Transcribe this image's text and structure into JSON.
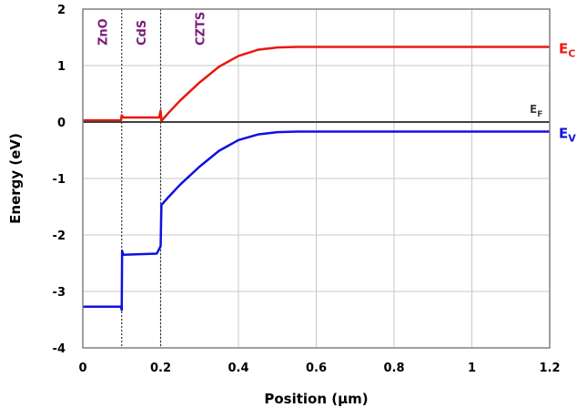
{
  "chart_data": {
    "type": "line",
    "xlabel": "Position (μm)",
    "ylabel": "Energy (eV)",
    "xlim": [
      0,
      1.2
    ],
    "ylim": [
      -4,
      2
    ],
    "x_ticks": [
      "0",
      "0.2",
      "0.4",
      "0.6",
      "0.8",
      "1",
      "1.2"
    ],
    "y_ticks": [
      "2",
      "1",
      "0",
      "-1",
      "-2",
      "-3",
      "-4"
    ],
    "grid": true,
    "regions": [
      {
        "label": "ZnO",
        "x_label_at": 0.05,
        "boundary_x": 0.1
      },
      {
        "label": "CdS",
        "x_label_at": 0.15,
        "boundary_x": 0.2
      },
      {
        "label": "CZTS",
        "x_label_at": 0.3
      }
    ],
    "region_color": "#7b1a7b",
    "series": [
      {
        "name": "E",
        "subscript": "C",
        "color": "#e8190e",
        "points": [
          [
            0,
            0.03
          ],
          [
            0.098,
            0.03
          ],
          [
            0.1,
            0.12
          ],
          [
            0.104,
            0.08
          ],
          [
            0.196,
            0.08
          ],
          [
            0.2,
            0.2
          ],
          [
            0.202,
            0.02
          ],
          [
            0.22,
            0.16
          ],
          [
            0.25,
            0.38
          ],
          [
            0.3,
            0.7
          ],
          [
            0.35,
            0.98
          ],
          [
            0.4,
            1.17
          ],
          [
            0.45,
            1.28
          ],
          [
            0.5,
            1.32
          ],
          [
            0.55,
            1.33
          ],
          [
            0.6,
            1.33
          ],
          [
            1.2,
            1.33
          ]
        ]
      },
      {
        "name": "E",
        "subscript": "F",
        "color": "#404040",
        "points": [
          [
            0,
            0.0
          ],
          [
            1.2,
            0.0
          ]
        ]
      },
      {
        "name": "E",
        "subscript": "V",
        "color": "#1010e0",
        "points": [
          [
            0,
            -3.27
          ],
          [
            0.098,
            -3.27
          ],
          [
            0.1,
            -3.33
          ],
          [
            0.101,
            -2.28
          ],
          [
            0.104,
            -2.35
          ],
          [
            0.19,
            -2.33
          ],
          [
            0.2,
            -2.2
          ],
          [
            0.202,
            -1.47
          ],
          [
            0.22,
            -1.33
          ],
          [
            0.25,
            -1.11
          ],
          [
            0.3,
            -0.79
          ],
          [
            0.35,
            -0.51
          ],
          [
            0.4,
            -0.32
          ],
          [
            0.45,
            -0.22
          ],
          [
            0.5,
            -0.18
          ],
          [
            0.55,
            -0.17
          ],
          [
            1.2,
            -0.17
          ]
        ]
      }
    ]
  }
}
